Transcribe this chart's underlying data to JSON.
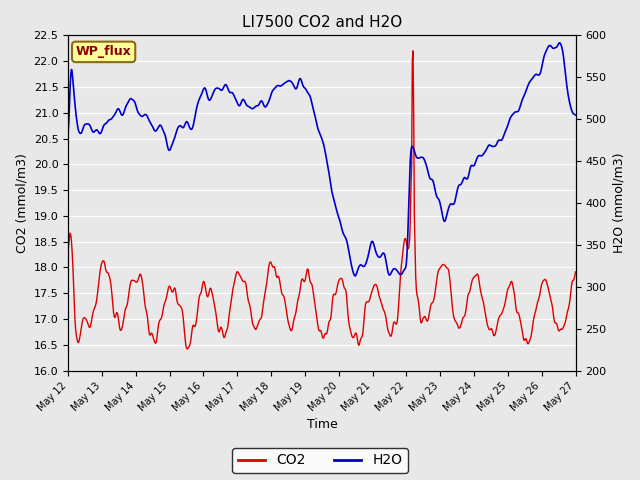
{
  "title": "LI7500 CO2 and H2O",
  "xlabel": "Time",
  "ylabel_left": "CO2 (mmol/m3)",
  "ylabel_right": "H2O (mmol/m3)",
  "ylim_left": [
    16.0,
    22.5
  ],
  "ylim_right": [
    200,
    600
  ],
  "yticks_left": [
    16.0,
    16.5,
    17.0,
    17.5,
    18.0,
    18.5,
    19.0,
    19.5,
    20.0,
    20.5,
    21.0,
    21.5,
    22.0,
    22.5
  ],
  "yticks_right": [
    200,
    250,
    300,
    350,
    400,
    450,
    500,
    550,
    600
  ],
  "xtick_labels": [
    "May 12",
    "May 13",
    "May 14",
    "May 15",
    "May 16",
    "May 17",
    "May 18",
    "May 19",
    "May 20",
    "May 21",
    "May 22",
    "May 23",
    "May 24",
    "May 25",
    "May 26",
    "May 27"
  ],
  "annotation_text": "WP_flux",
  "annotation_color": "#8B0000",
  "annotation_bg": "#FFFF99",
  "annotation_border": "#8B6914",
  "co2_color": "#DD0000",
  "h2o_color": "#0000CC",
  "plot_bg": "#E8E8E8",
  "grid_color": "#FFFFFF",
  "fig_bg": "#E8E8E8",
  "n_points": 750
}
